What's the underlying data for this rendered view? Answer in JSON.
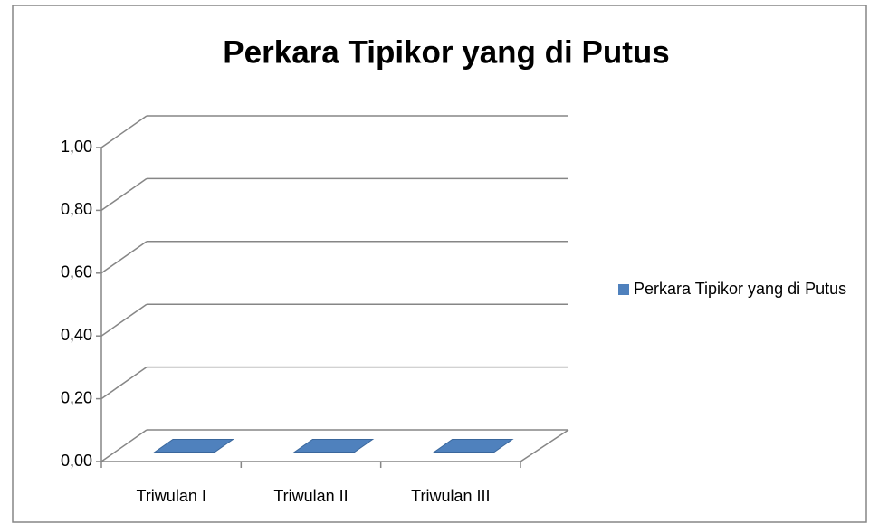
{
  "chart_data": {
    "type": "bar3d",
    "title": "Perkara Tipikor yang di Putus",
    "categories": [
      "Triwulan I",
      "Triwulan II",
      "Triwulan III"
    ],
    "series": [
      {
        "name": "Perkara Tipikor yang di Putus",
        "color": "#4f81bd",
        "values": [
          0,
          0,
          0
        ]
      }
    ],
    "ylim": [
      0,
      1
    ],
    "yticks": [
      {
        "value": 0,
        "label": "0,00"
      },
      {
        "value": 0.2,
        "label": "0,20"
      },
      {
        "value": 0.4,
        "label": "0,40"
      },
      {
        "value": 0.6,
        "label": "0,60"
      },
      {
        "value": 0.8,
        "label": "0,80"
      },
      {
        "value": 1,
        "label": "1,00"
      }
    ],
    "grid": true,
    "legend": "right"
  }
}
